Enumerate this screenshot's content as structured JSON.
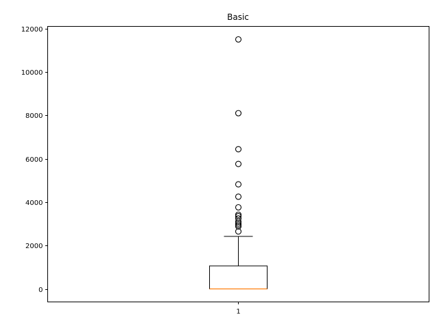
{
  "chart_data": {
    "type": "boxplot",
    "title": "Basic",
    "xlabel": "",
    "ylabel": "",
    "categories": [
      "1"
    ],
    "ylim": [
      -600,
      12100
    ],
    "yticks": [
      0,
      2000,
      4000,
      6000,
      8000,
      10000,
      12000
    ],
    "ytick_labels": [
      "0",
      "2000",
      "4000",
      "6000",
      "8000",
      "10000",
      "12000"
    ],
    "grid": false,
    "boxes": [
      {
        "label": "1",
        "whisker_low": 0,
        "q1": 0,
        "median": 0,
        "q3": 1060,
        "whisker_high": 2420,
        "outliers": [
          2650,
          2880,
          2950,
          3020,
          3100,
          3250,
          3350,
          3420,
          3760,
          4250,
          4820,
          5760,
          6440,
          8100,
          11500
        ]
      }
    ],
    "colors": {
      "box": "#000000",
      "median": "#ff7f0e",
      "outlier_edge": "#000000"
    }
  }
}
